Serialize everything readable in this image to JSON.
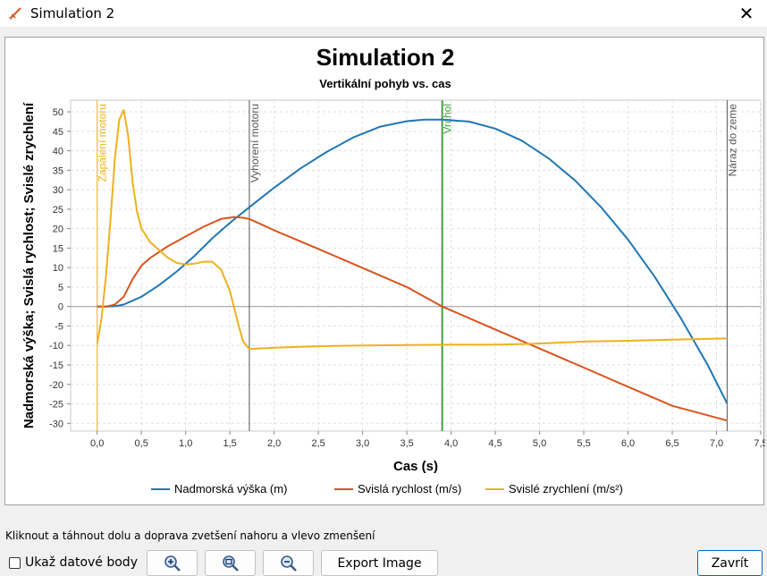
{
  "window": {
    "title": "Simulation 2",
    "close_glyph": "✕",
    "icon": "rocket-icon"
  },
  "chart_data": {
    "type": "line",
    "title": "Simulation 2",
    "subtitle": "Vertikální pohyb vs. cas",
    "xlabel": "Cas (s)",
    "ylabel": "Nadmorská výška; Svislá rychlost; Svislé zrychlení",
    "xlim": [
      -0.3,
      7.5
    ],
    "ylim": [
      -32,
      53
    ],
    "x_ticks": [
      "0,0",
      "0,5",
      "1,0",
      "1,5",
      "2,0",
      "2,5",
      "3,0",
      "3,5",
      "4,0",
      "4,5",
      "5,0",
      "5,5",
      "6,0",
      "6,5",
      "7,0",
      "7,5"
    ],
    "x_tick_values": [
      0,
      0.5,
      1,
      1.5,
      2,
      2.5,
      3,
      3.5,
      4,
      4.5,
      5,
      5.5,
      6,
      6.5,
      7,
      7.5
    ],
    "y_ticks": [
      "50",
      "45",
      "40",
      "35",
      "30",
      "25",
      "20",
      "15",
      "10",
      "5",
      "0",
      "-5",
      "-10",
      "-15",
      "-20",
      "-25",
      "-30"
    ],
    "y_tick_values": [
      50,
      45,
      40,
      35,
      30,
      25,
      20,
      15,
      10,
      5,
      0,
      -5,
      -10,
      -15,
      -20,
      -25,
      -30
    ],
    "grid": true,
    "legend_position": "bottom",
    "series": [
      {
        "name": "Nadmorská výška (m)",
        "color": "#1f77b4",
        "x": [
          0,
          0.1,
          0.2,
          0.3,
          0.5,
          0.7,
          0.9,
          1.1,
          1.3,
          1.5,
          1.72,
          2.0,
          2.3,
          2.6,
          2.9,
          3.2,
          3.5,
          3.7,
          3.9,
          4.2,
          4.5,
          4.8,
          5.1,
          5.4,
          5.7,
          6.0,
          6.3,
          6.6,
          6.9,
          7.12
        ],
        "values": [
          0,
          0,
          0.1,
          0.5,
          2.5,
          5.5,
          9,
          13,
          17.5,
          21.5,
          25.5,
          30.5,
          35.5,
          39.8,
          43.5,
          46.2,
          47.6,
          48,
          48,
          47.5,
          45.7,
          42.6,
          38.1,
          32.4,
          25.4,
          17.2,
          7.7,
          -3.1,
          -15,
          -24.9
        ]
      },
      {
        "name": "Svislá rychlost (m/s)",
        "color": "#d9541e",
        "x": [
          0,
          0.1,
          0.2,
          0.3,
          0.4,
          0.5,
          0.6,
          0.8,
          1.0,
          1.2,
          1.4,
          1.55,
          1.65,
          1.72,
          2.0,
          2.5,
          3.0,
          3.5,
          3.9,
          4.5,
          5.0,
          5.5,
          6.0,
          6.5,
          7.12
        ],
        "values": [
          0,
          0,
          0.5,
          2.5,
          7,
          10.5,
          12.5,
          15.5,
          18,
          20.5,
          22.5,
          23,
          22.8,
          22.5,
          19.6,
          14.8,
          9.9,
          5,
          0,
          -5.9,
          -10.8,
          -15.7,
          -20.6,
          -25.5,
          -29.3
        ]
      },
      {
        "name": "Svislé zrychlení (m/s²)",
        "color": "#edb120",
        "x": [
          0,
          0.05,
          0.1,
          0.15,
          0.2,
          0.25,
          0.3,
          0.35,
          0.4,
          0.45,
          0.5,
          0.6,
          0.7,
          0.8,
          0.9,
          1.0,
          1.1,
          1.2,
          1.3,
          1.4,
          1.5,
          1.6,
          1.65,
          1.72,
          2.0,
          2.5,
          3.0,
          3.5,
          4.0,
          4.5,
          5.0,
          5.5,
          6.0,
          6.5,
          7.12
        ],
        "values": [
          -9.5,
          -3,
          8,
          22,
          38,
          48,
          50.5,
          44,
          32,
          24.5,
          20,
          16.5,
          14.5,
          12.5,
          11.2,
          10.8,
          11,
          11.5,
          11.5,
          9.5,
          4,
          -5,
          -9,
          -10.9,
          -10.6,
          -10.2,
          -10,
          -9.9,
          -9.8,
          -9.8,
          -9.5,
          -9,
          -8.8,
          -8.5,
          -8.2
        ]
      }
    ],
    "annotations": [
      {
        "label": "Zapálení motoru",
        "x": 0.0,
        "color": "#edb120"
      },
      {
        "label": "Vyhorení motoru",
        "x": 1.72,
        "color": "#555555"
      },
      {
        "label": "Vrchol",
        "x": 3.9,
        "color": "#44a044"
      },
      {
        "label": "Náraz do zeme",
        "x": 7.12,
        "color": "#555555"
      }
    ],
    "zero_line": true
  },
  "status": {
    "hint": "Kliknout a táhnout dolu a doprava zvetšení nahoru a vlevo zmenšení"
  },
  "controls": {
    "show_points_label": "Ukaž datové body",
    "show_points_checked": false,
    "zoom_in_icon": "zoom-in-icon",
    "zoom_fit_icon": "zoom-fit-icon",
    "zoom_out_icon": "zoom-out-icon",
    "export_label": "Export Image",
    "close_label": "Zavrít"
  }
}
